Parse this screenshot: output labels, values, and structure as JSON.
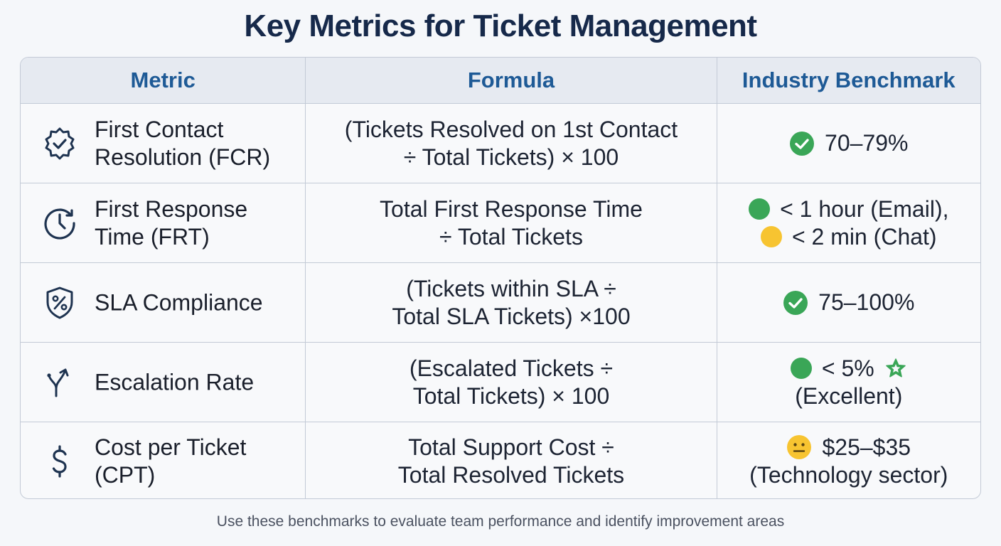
{
  "title": "Key Metrics for Ticket Management",
  "columns": {
    "metric": "Metric",
    "formula": "Formula",
    "benchmark": "Industry Benchmark"
  },
  "rows": [
    {
      "icon": "badge-check-icon",
      "metric": "First Contact\nResolution (FCR)",
      "formula": "(Tickets Resolved on 1st Contact\n÷ Total Tickets) × 100",
      "benchmark": {
        "line1": "70–79%"
      }
    },
    {
      "icon": "clock-icon",
      "metric": "First Response\nTime (FRT)",
      "formula": "Total First Response Time\n÷ Total Tickets",
      "benchmark": {
        "line1": "< 1 hour (Email),",
        "line2": "< 2 min (Chat)"
      }
    },
    {
      "icon": "shield-percent-icon",
      "metric": "SLA Compliance",
      "formula": "(Tickets within SLA ÷\nTotal SLA Tickets) ×100",
      "benchmark": {
        "line1": "75–100%"
      }
    },
    {
      "icon": "escalation-arrow-icon",
      "metric": "Escalation Rate",
      "formula": "(Escalated Tickets ÷\nTotal Tickets) × 100",
      "benchmark": {
        "line1": "< 5%",
        "line2": "(Excellent)"
      }
    },
    {
      "icon": "dollar-icon",
      "metric": "Cost per Ticket\n(CPT)",
      "formula": "Total Support Cost ÷\nTotal Resolved Tickets",
      "benchmark": {
        "line1": "$25–$35",
        "line2": "(Technology sector)"
      }
    }
  ],
  "footer": "Use these benchmarks to evaluate team performance and identify improvement areas",
  "colors": {
    "title": "#16294a",
    "header_text": "#1e5a96",
    "good": "#3aa657",
    "warn": "#f7c431",
    "icon": "#1e3350"
  }
}
